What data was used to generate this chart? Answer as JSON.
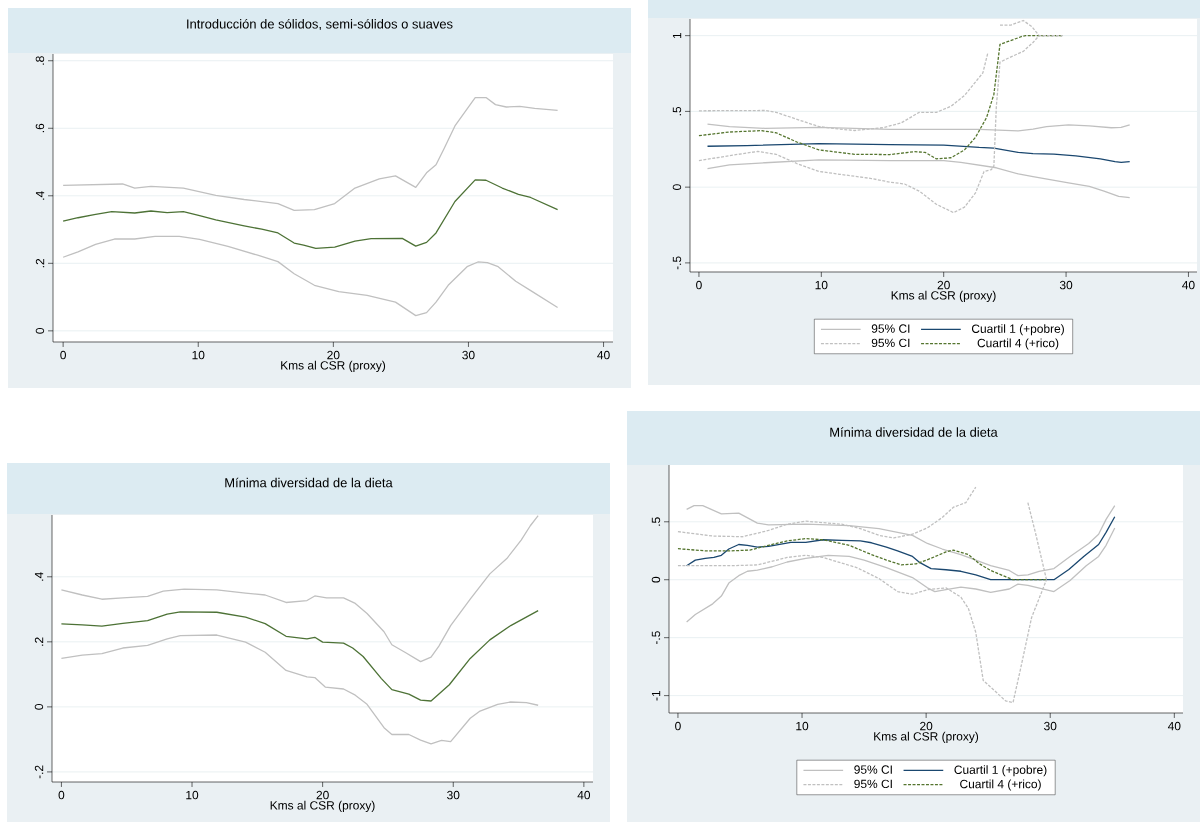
{
  "chart_data": [
    {
      "type": "line",
      "title": "Introducción de sólidos, semi-sólidos o suaves",
      "xlabel": "Kms al CSR (proxy)",
      "xlim": [
        -0.75,
        40.7
      ],
      "xticks": [
        0,
        10,
        20,
        30,
        40
      ],
      "ylim": [
        -0.033,
        0.82
      ],
      "yticks": [
        {
          "value": 0,
          "label": "0"
        },
        {
          "value": 0.2,
          "label": ".2"
        },
        {
          "value": 0.4,
          "label": ".4"
        },
        {
          "value": 0.6,
          "label": ".6"
        },
        {
          "value": 0.8,
          "label": ".8"
        }
      ],
      "grid": "y",
      "series": [
        {
          "color": "#c0c0c0",
          "line_style": "solid",
          "x": [
            0,
            4.4,
            5.3,
            6.5,
            8.9,
            11.3,
            13.4,
            15.9,
            17.1,
            18.6,
            20.1,
            21.6,
            23.4,
            24.6,
            26.1,
            26.9,
            27.6,
            28.2,
            29.0,
            30.5,
            31.3,
            32.0,
            32.8,
            33.8,
            34.9,
            36.6
          ],
          "values": [
            0.431,
            0.435,
            0.423,
            0.428,
            0.423,
            0.401,
            0.389,
            0.377,
            0.357,
            0.359,
            0.377,
            0.423,
            0.45,
            0.459,
            0.425,
            0.468,
            0.492,
            0.54,
            0.607,
            0.691,
            0.691,
            0.67,
            0.663,
            0.665,
            0.659,
            0.653
          ]
        },
        {
          "color": "#4d7236",
          "line_style": "solid",
          "x": [
            0,
            1.1,
            2.3,
            3.6,
            5.3,
            6.5,
            7.7,
            8.9,
            10.1,
            11.3,
            13.4,
            14.7,
            15.9,
            17.1,
            17.8,
            18.7,
            20.1,
            21.6,
            22.8,
            25.1,
            26.1,
            26.9,
            27.6,
            29.0,
            30.5,
            31.3,
            32.5,
            33.7,
            34.6,
            36.6
          ],
          "values": [
            0.325,
            0.335,
            0.344,
            0.353,
            0.349,
            0.355,
            0.35,
            0.353,
            0.341,
            0.329,
            0.311,
            0.301,
            0.29,
            0.26,
            0.254,
            0.244,
            0.248,
            0.266,
            0.273,
            0.274,
            0.251,
            0.262,
            0.29,
            0.383,
            0.447,
            0.446,
            0.423,
            0.404,
            0.395,
            0.359
          ]
        },
        {
          "color": "#c0c0c0",
          "line_style": "solid",
          "x": [
            0,
            1.1,
            2.4,
            3.8,
            5.3,
            6.8,
            8.6,
            10.1,
            12.2,
            14.4,
            15.9,
            17.1,
            18.6,
            20.4,
            22.5,
            24.6,
            26.1,
            26.9,
            27.6,
            28.5,
            29.9,
            30.7,
            31.4,
            32.2,
            33.5,
            34.7,
            36.6
          ],
          "values": [
            0.218,
            0.234,
            0.256,
            0.272,
            0.272,
            0.28,
            0.28,
            0.271,
            0.25,
            0.224,
            0.205,
            0.169,
            0.135,
            0.116,
            0.105,
            0.085,
            0.045,
            0.054,
            0.085,
            0.135,
            0.19,
            0.204,
            0.202,
            0.19,
            0.147,
            0.117,
            0.069
          ]
        }
      ]
    },
    {
      "type": "line",
      "xlabel": "Kms al CSR (proxy)",
      "xlim": [
        -0.73,
        40.7
      ],
      "xticks": [
        0,
        10,
        20,
        30,
        40
      ],
      "ylim": [
        -0.56,
        1.11
      ],
      "yticks": [
        {
          "value": -0.5,
          "label": "-.5"
        },
        {
          "value": 0,
          "label": "0"
        },
        {
          "value": 0.5,
          "label": ".5"
        },
        {
          "value": 1,
          "label": "1"
        }
      ],
      "grid": "y",
      "legend": "bottom",
      "series": [
        {
          "name": "95% CI",
          "color": "#c0c0c0",
          "line_style": "solid",
          "x": [
            0.7,
            2.5,
            5.4,
            9.8,
            15.6,
            22.9,
            26.1,
            27.3,
            28.4,
            30.2,
            31.9,
            33.7,
            34.5,
            35.2
          ],
          "values": [
            0.416,
            0.4,
            0.388,
            0.395,
            0.381,
            0.381,
            0.371,
            0.383,
            0.4,
            0.411,
            0.404,
            0.392,
            0.395,
            0.411
          ]
        },
        {
          "name": "Cuartil 1 (+pobre)",
          "color": "#1a476f",
          "line_style": "solid",
          "x": [
            0.7,
            3.9,
            9.8,
            15.6,
            20,
            22.9,
            24.1,
            26.1,
            27.3,
            29,
            30.8,
            32.8,
            34,
            34.5,
            35.2
          ],
          "values": [
            0.27,
            0.274,
            0.288,
            0.281,
            0.277,
            0.262,
            0.258,
            0.229,
            0.222,
            0.218,
            0.206,
            0.187,
            0.168,
            0.163,
            0.168
          ]
        },
        {
          "name": "95% CI",
          "color": "#c0c0c0",
          "line_style": "dashed",
          "x": [
            0,
            5.4,
            6.3,
            8.3,
            9.8,
            11.5,
            12.7,
            15,
            16.5,
            18,
            19.4,
            20.6,
            21.7,
            23.2,
            23.6,
            23.9,
            24.2,
            24.5,
            24.6,
            25.5,
            26.5,
            27.2,
            27.8,
            29.7
          ],
          "values": [
            0.504,
            0.506,
            0.494,
            0.44,
            0.4,
            0.383,
            0.374,
            0.392,
            0.423,
            0.494,
            0.494,
            0.534,
            0.605,
            0.754,
            0.884,
            null,
            null,
            null,
            1.069,
            1.07,
            1.1,
            1.06,
            1.0,
            1.0
          ]
        },
        {
          "name": "Cuartil 4 (+rico)",
          "color": "#55752f",
          "line_style": "dashed",
          "x": [
            0,
            2.5,
            5.1,
            6.3,
            8,
            9.8,
            12.7,
            15.6,
            17.6,
            18.5,
            19.4,
            20.6,
            21.7,
            22.6,
            23.5,
            24.1,
            24.6,
            25.2,
            26.4,
            26.7,
            29.7
          ],
          "values": [
            0.34,
            0.364,
            0.373,
            0.359,
            0.298,
            0.246,
            0.217,
            0.215,
            0.234,
            0.229,
            0.187,
            0.194,
            0.246,
            0.329,
            0.459,
            0.612,
            0.943,
            0.96,
            0.995,
            1.0,
            1.0
          ]
        },
        {
          "color": "#c0c0c0",
          "line_style": "solid",
          "x": [
            0.7,
            2.5,
            5.4,
            9.8,
            15.6,
            20,
            21.4,
            24.3,
            26.1,
            27.3,
            30.2,
            31.9,
            33.1,
            34.3,
            35.2
          ],
          "values": [
            0.123,
            0.147,
            0.161,
            0.18,
            0.175,
            0.175,
            0.163,
            0.128,
            0.087,
            0.069,
            0.028,
            0.005,
            -0.026,
            -0.061,
            -0.069
          ]
        },
        {
          "color": "#c0c0c0",
          "line_style": "dashed",
          "x": [
            0,
            2.5,
            4.8,
            6.3,
            8,
            9.8,
            11.5,
            14.1,
            15.6,
            16.8,
            18,
            19.4,
            20.8,
            21.7,
            22.6,
            23.3,
            23.9,
            24.1,
            24.3,
            24.6,
            25.5,
            26.5,
            27.3,
            27.8,
            29.7
          ],
          "values": [
            0.175,
            0.208,
            0.236,
            0.217,
            0.156,
            0.104,
            0.085,
            0.057,
            0.033,
            0.021,
            -0.026,
            -0.113,
            -0.168,
            -0.132,
            -0.038,
            0.104,
            0.116,
            0.139,
            0.53,
            0.825,
            0.86,
            0.896,
            0.955,
            1.0,
            1.0
          ]
        }
      ]
    },
    {
      "type": "line",
      "title": "Mínima diversidad de la dieta",
      "xlabel": "Kms al CSR (proxy)",
      "xlim": [
        -0.72,
        40.7
      ],
      "xticks": [
        0,
        10,
        20,
        30,
        40
      ],
      "ylim": [
        -0.231,
        0.59
      ],
      "yticks": [
        {
          "value": -0.2,
          "label": "-.2"
        },
        {
          "value": 0,
          "label": "0"
        },
        {
          "value": 0.2,
          "label": ".2"
        },
        {
          "value": 0.4,
          "label": ".4"
        }
      ],
      "grid": "y",
      "series": [
        {
          "color": "#c0c0c0",
          "line_style": "solid",
          "x": [
            0,
            1.6,
            3.1,
            4.7,
            6.6,
            7.8,
            9.4,
            11.9,
            14.1,
            15.6,
            17.2,
            18.8,
            19.4,
            20.3,
            21.6,
            22.5,
            23.4,
            24.7,
            25.3,
            26.3,
            27.5,
            28.3,
            28.9,
            29.8,
            31.3,
            32.8,
            34.1,
            35.2,
            35.9,
            36.5
          ],
          "values": [
            0.36,
            0.344,
            0.331,
            0.335,
            0.34,
            0.356,
            0.362,
            0.36,
            0.35,
            0.344,
            0.321,
            0.327,
            0.341,
            0.335,
            0.335,
            0.318,
            0.287,
            0.231,
            0.191,
            0.168,
            0.139,
            0.153,
            0.187,
            0.25,
            0.331,
            0.409,
            0.456,
            0.513,
            0.557,
            0.588
          ]
        },
        {
          "color": "#4d7236",
          "line_style": "solid",
          "x": [
            0,
            1.6,
            3.1,
            4.7,
            6.6,
            8.1,
            9.1,
            11.9,
            14.1,
            15.6,
            17.2,
            18.8,
            19.4,
            20,
            21.6,
            22.3,
            23.1,
            24.5,
            25.3,
            26.6,
            27.5,
            28.3,
            29.7,
            31.3,
            32.8,
            34.4,
            36.5
          ],
          "values": [
            0.255,
            0.252,
            0.248,
            0.257,
            0.265,
            0.285,
            0.292,
            0.291,
            0.276,
            0.256,
            0.217,
            0.209,
            0.214,
            0.199,
            0.196,
            0.181,
            0.155,
            0.087,
            0.053,
            0.039,
            0.021,
            0.018,
            0.068,
            0.149,
            0.206,
            0.25,
            0.296
          ]
        },
        {
          "color": "#c0c0c0",
          "line_style": "solid",
          "x": [
            0,
            1.6,
            3.1,
            4.7,
            6.6,
            8.1,
            9.1,
            11.9,
            14.1,
            15.6,
            17.2,
            18.8,
            19.4,
            20.2,
            21.6,
            22.5,
            23.4,
            24.7,
            25.3,
            26.6,
            27.5,
            28.3,
            29.1,
            29.8,
            31.3,
            32.0,
            33.4,
            34.4,
            35.6,
            36.5
          ],
          "values": [
            0.149,
            0.159,
            0.164,
            0.181,
            0.189,
            0.209,
            0.219,
            0.221,
            0.199,
            0.168,
            0.112,
            0.092,
            0.09,
            0.061,
            0.055,
            0.036,
            0.008,
            -0.064,
            -0.085,
            -0.085,
            -0.102,
            -0.114,
            -0.103,
            -0.107,
            -0.035,
            -0.014,
            0.008,
            0.015,
            0.013,
            0.005
          ]
        }
      ]
    },
    {
      "type": "line",
      "title": "Mínima diversidad de la dieta",
      "xlabel": "Kms al CSR (proxy)",
      "xlim": [
        -0.72,
        40.7
      ],
      "xticks": [
        0,
        10,
        20,
        30,
        40
      ],
      "ylim": [
        -1.15,
        0.99
      ],
      "yticks": [
        {
          "value": -1,
          "label": "-1"
        },
        {
          "value": -0.5,
          "label": "-.5"
        },
        {
          "value": 0,
          "label": "0"
        },
        {
          "value": 0.5,
          "label": ".5"
        }
      ],
      "grid": "y",
      "legend": "bottom",
      "series": [
        {
          "name": "95% CI",
          "color": "#c0c0c0",
          "line_style": "solid",
          "x": [
            0.7,
            1.3,
            2,
            3.5,
            4.9,
            6.4,
            7.3,
            10.3,
            13.8,
            16.2,
            17.7,
            18.9,
            20.1,
            21.3,
            22.8,
            24,
            25.2,
            26.7,
            27.4,
            28.2,
            29.1,
            30.3,
            31.6,
            33.1,
            33.9,
            34.5,
            35.2
          ],
          "values": [
            0.607,
            0.639,
            0.639,
            0.569,
            0.575,
            0.489,
            0.473,
            0.479,
            0.466,
            0.441,
            0.409,
            0.383,
            0.313,
            0.265,
            0.217,
            0.169,
            0.121,
            0.08,
            0.035,
            0.042,
            0.073,
            0.096,
            0.201,
            0.313,
            0.393,
            0.521,
            0.639
          ]
        },
        {
          "name": "Cuartil 1 (+pobre)",
          "color": "#1a476f",
          "line_style": "solid",
          "x": [
            0.7,
            1.4,
            2.2,
            2.9,
            3.5,
            4.1,
            4.9,
            5.6,
            6.4,
            7.3,
            9.1,
            10.3,
            11.7,
            13.2,
            14.7,
            15.6,
            16.8,
            17.7,
            18.9,
            19.5,
            20.4,
            21.6,
            22.8,
            24,
            25.2,
            30.3,
            31.5,
            32.7,
            33.9,
            34.5,
            35.2
          ],
          "values": [
            0.121,
            0.169,
            0.185,
            0.192,
            0.211,
            0.265,
            0.304,
            0.297,
            0.281,
            0.288,
            0.323,
            0.323,
            0.345,
            0.339,
            0.335,
            0.319,
            0.281,
            0.249,
            0.201,
            0.147,
            0.096,
            0.086,
            0.073,
            0.042,
            0,
            0,
            0.089,
            0.201,
            0.304,
            0.409,
            0.543
          ]
        },
        {
          "name": "95% CI",
          "color": "#c0c0c0",
          "line_style": "dashed",
          "x": [
            0,
            2.8,
            5.2,
            7.3,
            8.8,
            10.3,
            13.2,
            14.7,
            16.2,
            17.4,
            18.9,
            20.1,
            21.3,
            22.2,
            23.2,
            24,
            24.5,
            24.9,
            27.4,
            28.2,
            28.8,
            29.7
          ],
          "values": [
            0.415,
            0.377,
            0.371,
            0.425,
            0.479,
            0.505,
            0.479,
            0.441,
            0.383,
            0.361,
            0.393,
            0.447,
            0.537,
            0.626,
            0.665,
            0.799,
            null,
            null,
            null,
            0.665,
            0.409,
            0
          ]
        },
        {
          "name": "Cuartil 4 (+rico)",
          "color": "#55752f",
          "line_style": "dashed",
          "x": [
            0,
            2.2,
            4.3,
            5.8,
            7.3,
            8.8,
            10.3,
            11.7,
            13.8,
            15.6,
            16.8,
            18,
            19.2,
            20.4,
            21.6,
            22.2,
            23.4,
            24.3,
            25.2,
            26.4,
            27,
            29.7
          ],
          "values": [
            0.268,
            0.249,
            0.249,
            0.256,
            0.297,
            0.335,
            0.355,
            0.345,
            0.297,
            0.217,
            0.169,
            0.128,
            0.137,
            0.185,
            0.24,
            0.256,
            0.217,
            0.137,
            0.08,
            0.026,
            0,
            0
          ]
        },
        {
          "color": "#c0c0c0",
          "line_style": "solid",
          "x": [
            0.7,
            1.4,
            2.8,
            3.5,
            4.1,
            4.9,
            5.6,
            6.4,
            7.6,
            8.8,
            10.3,
            12.1,
            13.8,
            15,
            16.8,
            18.9,
            20.1,
            20.7,
            21.6,
            22.8,
            24,
            25.2,
            26.7,
            27.4,
            28.2,
            30.3,
            31.6,
            32.9,
            33.9,
            34.5,
            35.2
          ],
          "values": [
            -0.364,
            -0.3,
            -0.208,
            -0.141,
            -0.029,
            0.035,
            0.073,
            0.083,
            0.112,
            0.153,
            0.185,
            0.211,
            0.201,
            0.169,
            0.105,
            0.019,
            -0.07,
            -0.102,
            -0.086,
            -0.064,
            -0.08,
            -0.109,
            -0.08,
            -0.038,
            -0.048,
            -0.102,
            -0.006,
            0.121,
            0.201,
            0.297,
            0.447
          ]
        },
        {
          "color": "#c0c0c0",
          "line_style": "dashed",
          "x": [
            0,
            4.3,
            6.4,
            8.8,
            10.3,
            11.7,
            14.4,
            16.2,
            17.7,
            18.9,
            20.1,
            21.6,
            22.8,
            23.4,
            24,
            24.6,
            25.2,
            26.4,
            27,
            27.6,
            28.5,
            29.7
          ],
          "values": [
            0.121,
            0.121,
            0.128,
            0.192,
            0.211,
            0.192,
            0.105,
            0.01,
            -0.102,
            -0.125,
            -0.086,
            -0.07,
            -0.15,
            -0.246,
            -0.454,
            -0.869,
            -0.927,
            -1.045,
            -1.06,
            -0.773,
            -0.326,
            0
          ]
        }
      ]
    }
  ]
}
